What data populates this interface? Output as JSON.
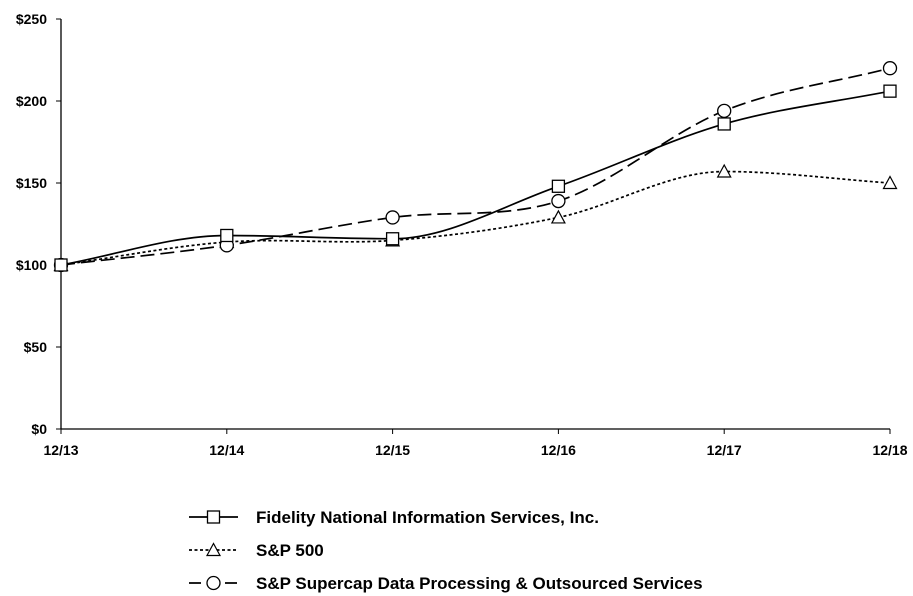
{
  "chart_data": {
    "type": "line",
    "title": "",
    "xlabel": "",
    "ylabel": "",
    "categories": [
      "12/13",
      "12/14",
      "12/15",
      "12/16",
      "12/17",
      "12/18"
    ],
    "ylim": [
      0,
      250
    ],
    "yticks": [
      0,
      50,
      100,
      150,
      200,
      250
    ],
    "ytick_labels": [
      "$0",
      "$50",
      "$100",
      "$150",
      "$200",
      "$250"
    ],
    "grid": false,
    "legend_position": "bottom",
    "series": [
      {
        "name": "Fidelity National Information Services, Inc.",
        "values": [
          100,
          118,
          116,
          148,
          186,
          206
        ],
        "marker": "square",
        "line_style": "solid"
      },
      {
        "name": "S&P 500",
        "values": [
          100,
          114,
          115,
          129,
          157,
          150
        ],
        "marker": "triangle",
        "line_style": "dotted"
      },
      {
        "name": "S&P Supercap Data Processing & Outsourced Services",
        "values": [
          100,
          112,
          129,
          139,
          194,
          220
        ],
        "marker": "circle",
        "line_style": "dashed"
      }
    ],
    "line_color": "#000000",
    "marker_fill": "#ffffff"
  }
}
